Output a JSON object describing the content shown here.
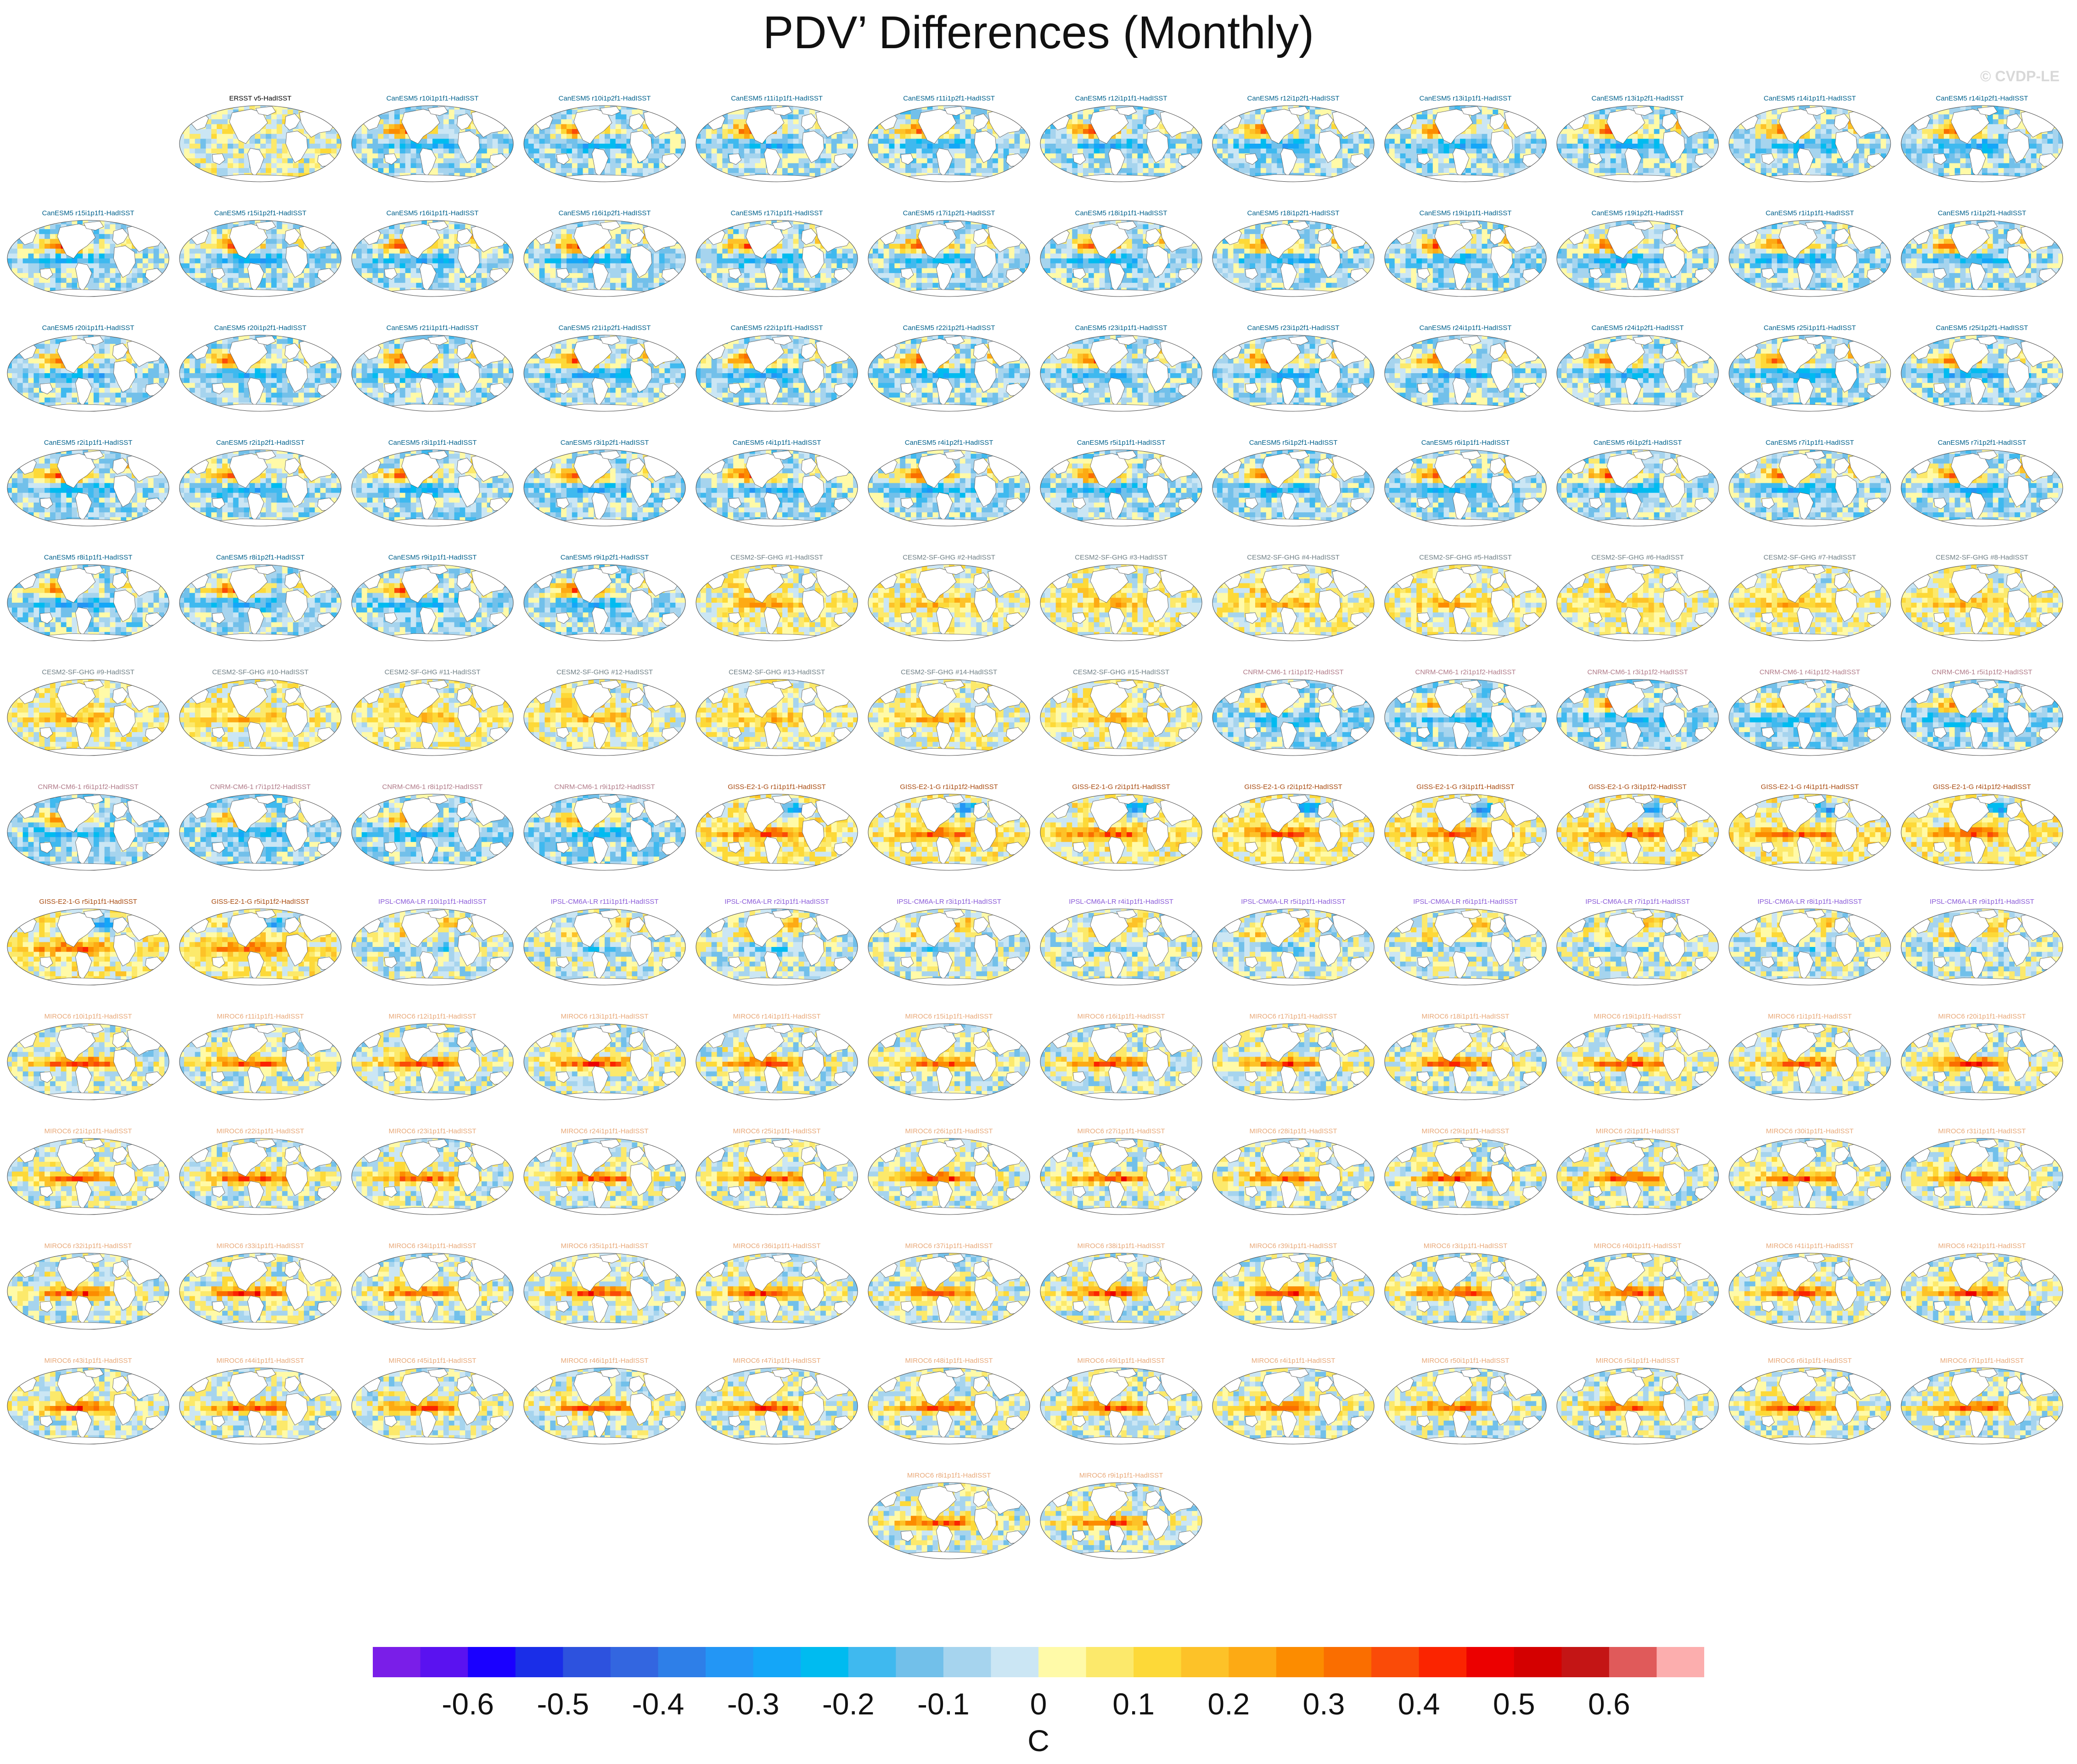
{
  "title": "PDV’ Differences (Monthly)",
  "watermark": "© CVDP-LE",
  "chart_data": {
    "type": "heatmap",
    "title": "PDV’ Differences (Monthly)",
    "projection": "global maps (Robinson-like ellipse)",
    "colorbar": {
      "units": "C",
      "ticks": [
        -0.6,
        -0.5,
        -0.4,
        -0.3,
        -0.2,
        -0.1,
        0,
        0.1,
        0.2,
        0.3,
        0.4,
        0.5,
        0.6
      ],
      "tick_labels": [
        "-0.6",
        "-0.5",
        "-0.4",
        "-0.3",
        "-0.2",
        "-0.1",
        "0",
        "0.1",
        "0.2",
        "0.3",
        "0.4",
        "0.5",
        "0.6"
      ],
      "levels_min": -0.7,
      "levels_max": 0.7,
      "level_step": 0.05,
      "colors": [
        "#7a1ee8",
        "#5a12f0",
        "#1a00ff",
        "#1a2ee8",
        "#2d52de",
        "#3366e0",
        "#2e7fe8",
        "#2396f5",
        "#14a6f8",
        "#00bbf0",
        "#3fb9ef",
        "#72c0ea",
        "#a6d4ee",
        "#cbe6f4",
        "#fffaa8",
        "#fce96b",
        "#fdd938",
        "#fdc228",
        "#fdaa14",
        "#fc8c00",
        "#fa6e00",
        "#fa4b08",
        "#fb2400",
        "#ec0000",
        "#d40000",
        "#c41515",
        "#e05a5a",
        "#fcaeae"
      ]
    },
    "label_colors": {
      "obs": "#000000",
      "CanESM5": "#00618c",
      "CESM2-SF-GHG": "#6f7f85",
      "CNRM-CM6-1": "#b07a88",
      "GISS-E2-1-G": "#a84a0f",
      "IPSL-CM6A-LR": "#8a5ad8",
      "MIROC6": "#e8a878"
    },
    "panels": [
      {
        "label": "ERSST v5-HadISST",
        "group": "obs"
      },
      {
        "label": "CanESM5 r10i1p1f1-HadISST",
        "group": "CanESM5"
      },
      {
        "label": "CanESM5 r10i1p2f1-HadISST",
        "group": "CanESM5"
      },
      {
        "label": "CanESM5 r11i1p1f1-HadISST",
        "group": "CanESM5"
      },
      {
        "label": "CanESM5 r11i1p2f1-HadISST",
        "group": "CanESM5"
      },
      {
        "label": "CanESM5 r12i1p1f1-HadISST",
        "group": "CanESM5"
      },
      {
        "label": "CanESM5 r12i1p2f1-HadISST",
        "group": "CanESM5"
      },
      {
        "label": "CanESM5 r13i1p1f1-HadISST",
        "group": "CanESM5"
      },
      {
        "label": "CanESM5 r13i1p2f1-HadISST",
        "group": "CanESM5"
      },
      {
        "label": "CanESM5 r14i1p1f1-HadISST",
        "group": "CanESM5"
      },
      {
        "label": "CanESM5 r14i1p2f1-HadISST",
        "group": "CanESM5"
      },
      {
        "label": "CanESM5 r15i1p1f1-HadISST",
        "group": "CanESM5"
      },
      {
        "label": "CanESM5 r15i1p2f1-HadISST",
        "group": "CanESM5"
      },
      {
        "label": "CanESM5 r16i1p1f1-HadISST",
        "group": "CanESM5"
      },
      {
        "label": "CanESM5 r16i1p2f1-HadISST",
        "group": "CanESM5"
      },
      {
        "label": "CanESM5 r17i1p1f1-HadISST",
        "group": "CanESM5"
      },
      {
        "label": "CanESM5 r17i1p2f1-HadISST",
        "group": "CanESM5"
      },
      {
        "label": "CanESM5 r18i1p1f1-HadISST",
        "group": "CanESM5"
      },
      {
        "label": "CanESM5 r18i1p2f1-HadISST",
        "group": "CanESM5"
      },
      {
        "label": "CanESM5 r19i1p1f1-HadISST",
        "group": "CanESM5"
      },
      {
        "label": "CanESM5 r19i1p2f1-HadISST",
        "group": "CanESM5"
      },
      {
        "label": "CanESM5 r1i1p1f1-HadISST",
        "group": "CanESM5"
      },
      {
        "label": "CanESM5 r1i1p2f1-HadISST",
        "group": "CanESM5"
      },
      {
        "label": "CanESM5 r20i1p1f1-HadISST",
        "group": "CanESM5"
      },
      {
        "label": "CanESM5 r20i1p2f1-HadISST",
        "group": "CanESM5"
      },
      {
        "label": "CanESM5 r21i1p1f1-HadISST",
        "group": "CanESM5"
      },
      {
        "label": "CanESM5 r21i1p2f1-HadISST",
        "group": "CanESM5"
      },
      {
        "label": "CanESM5 r22i1p1f1-HadISST",
        "group": "CanESM5"
      },
      {
        "label": "CanESM5 r22i1p2f1-HadISST",
        "group": "CanESM5"
      },
      {
        "label": "CanESM5 r23i1p1f1-HadISST",
        "group": "CanESM5"
      },
      {
        "label": "CanESM5 r23i1p2f1-HadISST",
        "group": "CanESM5"
      },
      {
        "label": "CanESM5 r24i1p1f1-HadISST",
        "group": "CanESM5"
      },
      {
        "label": "CanESM5 r24i1p2f1-HadISST",
        "group": "CanESM5"
      },
      {
        "label": "CanESM5 r25i1p1f1-HadISST",
        "group": "CanESM5"
      },
      {
        "label": "CanESM5 r25i1p2f1-HadISST",
        "group": "CanESM5"
      },
      {
        "label": "CanESM5 r2i1p1f1-HadISST",
        "group": "CanESM5"
      },
      {
        "label": "CanESM5 r2i1p2f1-HadISST",
        "group": "CanESM5"
      },
      {
        "label": "CanESM5 r3i1p1f1-HadISST",
        "group": "CanESM5"
      },
      {
        "label": "CanESM5 r3i1p2f1-HadISST",
        "group": "CanESM5"
      },
      {
        "label": "CanESM5 r4i1p1f1-HadISST",
        "group": "CanESM5"
      },
      {
        "label": "CanESM5 r4i1p2f1-HadISST",
        "group": "CanESM5"
      },
      {
        "label": "CanESM5 r5i1p1f1-HadISST",
        "group": "CanESM5"
      },
      {
        "label": "CanESM5 r5i1p2f1-HadISST",
        "group": "CanESM5"
      },
      {
        "label": "CanESM5 r6i1p1f1-HadISST",
        "group": "CanESM5"
      },
      {
        "label": "CanESM5 r6i1p2f1-HadISST",
        "group": "CanESM5"
      },
      {
        "label": "CanESM5 r7i1p1f1-HadISST",
        "group": "CanESM5"
      },
      {
        "label": "CanESM5 r7i1p2f1-HadISST",
        "group": "CanESM5"
      },
      {
        "label": "CanESM5 r8i1p1f1-HadISST",
        "group": "CanESM5"
      },
      {
        "label": "CanESM5 r8i1p2f1-HadISST",
        "group": "CanESM5"
      },
      {
        "label": "CanESM5 r9i1p1f1-HadISST",
        "group": "CanESM5"
      },
      {
        "label": "CanESM5 r9i1p2f1-HadISST",
        "group": "CanESM5"
      },
      {
        "label": "CESM2-SF-GHG #1-HadISST",
        "group": "CESM2-SF-GHG"
      },
      {
        "label": "CESM2-SF-GHG #2-HadISST",
        "group": "CESM2-SF-GHG"
      },
      {
        "label": "CESM2-SF-GHG #3-HadISST",
        "group": "CESM2-SF-GHG"
      },
      {
        "label": "CESM2-SF-GHG #4-HadISST",
        "group": "CESM2-SF-GHG"
      },
      {
        "label": "CESM2-SF-GHG #5-HadISST",
        "group": "CESM2-SF-GHG"
      },
      {
        "label": "CESM2-SF-GHG #6-HadISST",
        "group": "CESM2-SF-GHG"
      },
      {
        "label": "CESM2-SF-GHG #7-HadISST",
        "group": "CESM2-SF-GHG"
      },
      {
        "label": "CESM2-SF-GHG #8-HadISST",
        "group": "CESM2-SF-GHG"
      },
      {
        "label": "CESM2-SF-GHG #9-HadISST",
        "group": "CESM2-SF-GHG"
      },
      {
        "label": "CESM2-SF-GHG #10-HadISST",
        "group": "CESM2-SF-GHG"
      },
      {
        "label": "CESM2-SF-GHG #11-HadISST",
        "group": "CESM2-SF-GHG"
      },
      {
        "label": "CESM2-SF-GHG #12-HadISST",
        "group": "CESM2-SF-GHG"
      },
      {
        "label": "CESM2-SF-GHG #13-HadISST",
        "group": "CESM2-SF-GHG"
      },
      {
        "label": "CESM2-SF-GHG #14-HadISST",
        "group": "CESM2-SF-GHG"
      },
      {
        "label": "CESM2-SF-GHG #15-HadISST",
        "group": "CESM2-SF-GHG"
      },
      {
        "label": "CNRM-CM6-1 r1i1p1f2-HadISST",
        "group": "CNRM-CM6-1"
      },
      {
        "label": "CNRM-CM6-1 r2i1p1f2-HadISST",
        "group": "CNRM-CM6-1"
      },
      {
        "label": "CNRM-CM6-1 r3i1p1f2-HadISST",
        "group": "CNRM-CM6-1"
      },
      {
        "label": "CNRM-CM6-1 r4i1p1f2-HadISST",
        "group": "CNRM-CM6-1"
      },
      {
        "label": "CNRM-CM6-1 r5i1p1f2-HadISST",
        "group": "CNRM-CM6-1"
      },
      {
        "label": "CNRM-CM6-1 r6i1p1f2-HadISST",
        "group": "CNRM-CM6-1"
      },
      {
        "label": "CNRM-CM6-1 r7i1p1f2-HadISST",
        "group": "CNRM-CM6-1"
      },
      {
        "label": "CNRM-CM6-1 r8i1p1f2-HadISST",
        "group": "CNRM-CM6-1"
      },
      {
        "label": "CNRM-CM6-1 r9i1p1f2-HadISST",
        "group": "CNRM-CM6-1"
      },
      {
        "label": "GISS-E2-1-G r1i1p1f1-HadISST",
        "group": "GISS-E2-1-G"
      },
      {
        "label": "GISS-E2-1-G r1i1p1f2-HadISST",
        "group": "GISS-E2-1-G"
      },
      {
        "label": "GISS-E2-1-G r2i1p1f1-HadISST",
        "group": "GISS-E2-1-G"
      },
      {
        "label": "GISS-E2-1-G r2i1p1f2-HadISST",
        "group": "GISS-E2-1-G"
      },
      {
        "label": "GISS-E2-1-G r3i1p1f1-HadISST",
        "group": "GISS-E2-1-G"
      },
      {
        "label": "GISS-E2-1-G r3i1p1f2-HadISST",
        "group": "GISS-E2-1-G"
      },
      {
        "label": "GISS-E2-1-G r4i1p1f1-HadISST",
        "group": "GISS-E2-1-G"
      },
      {
        "label": "GISS-E2-1-G r4i1p1f2-HadISST",
        "group": "GISS-E2-1-G"
      },
      {
        "label": "GISS-E2-1-G r5i1p1f1-HadISST",
        "group": "GISS-E2-1-G"
      },
      {
        "label": "GISS-E2-1-G r5i1p1f2-HadISST",
        "group": "GISS-E2-1-G"
      },
      {
        "label": "IPSL-CM6A-LR r10i1p1f1-HadISST",
        "group": "IPSL-CM6A-LR"
      },
      {
        "label": "IPSL-CM6A-LR r11i1p1f1-HadISST",
        "group": "IPSL-CM6A-LR"
      },
      {
        "label": "IPSL-CM6A-LR r2i1p1f1-HadISST",
        "group": "IPSL-CM6A-LR"
      },
      {
        "label": "IPSL-CM6A-LR r3i1p1f1-HadISST",
        "group": "IPSL-CM6A-LR"
      },
      {
        "label": "IPSL-CM6A-LR r4i1p1f1-HadISST",
        "group": "IPSL-CM6A-LR"
      },
      {
        "label": "IPSL-CM6A-LR r5i1p1f1-HadISST",
        "group": "IPSL-CM6A-LR"
      },
      {
        "label": "IPSL-CM6A-LR r6i1p1f1-HadISST",
        "group": "IPSL-CM6A-LR"
      },
      {
        "label": "IPSL-CM6A-LR r7i1p1f1-HadISST",
        "group": "IPSL-CM6A-LR"
      },
      {
        "label": "IPSL-CM6A-LR r8i1p1f1-HadISST",
        "group": "IPSL-CM6A-LR"
      },
      {
        "label": "IPSL-CM6A-LR r9i1p1f1-HadISST",
        "group": "IPSL-CM6A-LR"
      },
      {
        "label": "MIROC6 r10i1p1f1-HadISST",
        "group": "MIROC6"
      },
      {
        "label": "MIROC6 r11i1p1f1-HadISST",
        "group": "MIROC6"
      },
      {
        "label": "MIROC6 r12i1p1f1-HadISST",
        "group": "MIROC6"
      },
      {
        "label": "MIROC6 r13i1p1f1-HadISST",
        "group": "MIROC6"
      },
      {
        "label": "MIROC6 r14i1p1f1-HadISST",
        "group": "MIROC6"
      },
      {
        "label": "MIROC6 r15i1p1f1-HadISST",
        "group": "MIROC6"
      },
      {
        "label": "MIROC6 r16i1p1f1-HadISST",
        "group": "MIROC6"
      },
      {
        "label": "MIROC6 r17i1p1f1-HadISST",
        "group": "MIROC6"
      },
      {
        "label": "MIROC6 r18i1p1f1-HadISST",
        "group": "MIROC6"
      },
      {
        "label": "MIROC6 r19i1p1f1-HadISST",
        "group": "MIROC6"
      },
      {
        "label": "MIROC6 r1i1p1f1-HadISST",
        "group": "MIROC6"
      },
      {
        "label": "MIROC6 r20i1p1f1-HadISST",
        "group": "MIROC6"
      },
      {
        "label": "MIROC6 r21i1p1f1-HadISST",
        "group": "MIROC6"
      },
      {
        "label": "MIROC6 r22i1p1f1-HadISST",
        "group": "MIROC6"
      },
      {
        "label": "MIROC6 r23i1p1f1-HadISST",
        "group": "MIROC6"
      },
      {
        "label": "MIROC6 r24i1p1f1-HadISST",
        "group": "MIROC6"
      },
      {
        "label": "MIROC6 r25i1p1f1-HadISST",
        "group": "MIROC6"
      },
      {
        "label": "MIROC6 r26i1p1f1-HadISST",
        "group": "MIROC6"
      },
      {
        "label": "MIROC6 r27i1p1f1-HadISST",
        "group": "MIROC6"
      },
      {
        "label": "MIROC6 r28i1p1f1-HadISST",
        "group": "MIROC6"
      },
      {
        "label": "MIROC6 r29i1p1f1-HadISST",
        "group": "MIROC6"
      },
      {
        "label": "MIROC6 r2i1p1f1-HadISST",
        "group": "MIROC6"
      },
      {
        "label": "MIROC6 r30i1p1f1-HadISST",
        "group": "MIROC6"
      },
      {
        "label": "MIROC6 r31i1p1f1-HadISST",
        "group": "MIROC6"
      },
      {
        "label": "MIROC6 r32i1p1f1-HadISST",
        "group": "MIROC6"
      },
      {
        "label": "MIROC6 r33i1p1f1-HadISST",
        "group": "MIROC6"
      },
      {
        "label": "MIROC6 r34i1p1f1-HadISST",
        "group": "MIROC6"
      },
      {
        "label": "MIROC6 r35i1p1f1-HadISST",
        "group": "MIROC6"
      },
      {
        "label": "MIROC6 r36i1p1f1-HadISST",
        "group": "MIROC6"
      },
      {
        "label": "MIROC6 r37i1p1f1-HadISST",
        "group": "MIROC6"
      },
      {
        "label": "MIROC6 r38i1p1f1-HadISST",
        "group": "MIROC6"
      },
      {
        "label": "MIROC6 r39i1p1f1-HadISST",
        "group": "MIROC6"
      },
      {
        "label": "MIROC6 r3i1p1f1-HadISST",
        "group": "MIROC6"
      },
      {
        "label": "MIROC6 r40i1p1f1-HadISST",
        "group": "MIROC6"
      },
      {
        "label": "MIROC6 r41i1p1f1-HadISST",
        "group": "MIROC6"
      },
      {
        "label": "MIROC6 r42i1p1f1-HadISST",
        "group": "MIROC6"
      },
      {
        "label": "MIROC6 r43i1p1f1-HadISST",
        "group": "MIROC6"
      },
      {
        "label": "MIROC6 r44i1p1f1-HadISST",
        "group": "MIROC6"
      },
      {
        "label": "MIROC6 r45i1p1f1-HadISST",
        "group": "MIROC6"
      },
      {
        "label": "MIROC6 r46i1p1f1-HadISST",
        "group": "MIROC6"
      },
      {
        "label": "MIROC6 r47i1p1f1-HadISST",
        "group": "MIROC6"
      },
      {
        "label": "MIROC6 r48i1p1f1-HadISST",
        "group": "MIROC6"
      },
      {
        "label": "MIROC6 r49i1p1f1-HadISST",
        "group": "MIROC6"
      },
      {
        "label": "MIROC6 r4i1p1f1-HadISST",
        "group": "MIROC6"
      },
      {
        "label": "MIROC6 r50i1p1f1-HadISST",
        "group": "MIROC6"
      },
      {
        "label": "MIROC6 r5i1p1f1-HadISST",
        "group": "MIROC6"
      },
      {
        "label": "MIROC6 r6i1p1f1-HadISST",
        "group": "MIROC6"
      },
      {
        "label": "MIROC6 r7i1p1f1-HadISST",
        "group": "MIROC6"
      },
      {
        "label": "MIROC6 r8i1p1f1-HadISST",
        "group": "MIROC6"
      },
      {
        "label": "MIROC6 r9i1p1f1-HadISST",
        "group": "MIROC6"
      }
    ]
  }
}
